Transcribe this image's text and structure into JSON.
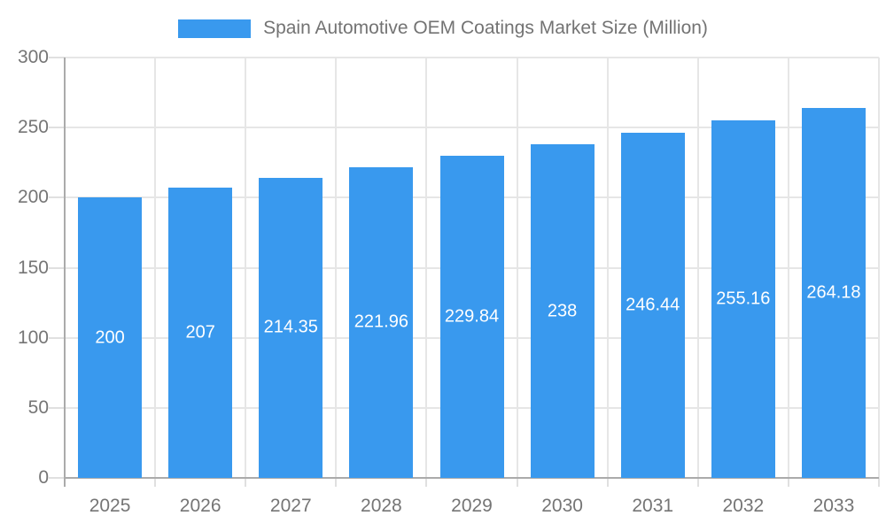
{
  "chart_data": {
    "type": "bar",
    "title": "Spain Automotive OEM Coatings Market Size (Million)",
    "categories": [
      "2025",
      "2026",
      "2027",
      "2028",
      "2029",
      "2030",
      "2031",
      "2032",
      "2033"
    ],
    "values": [
      200,
      207,
      214.35,
      221.96,
      229.84,
      238,
      246.44,
      255.16,
      264.18
    ],
    "bar_labels": [
      "200",
      "207",
      "214.35",
      "221.96",
      "229.84",
      "238",
      "246.44",
      "255.16",
      "264.18"
    ],
    "yticks": [
      0,
      50,
      100,
      150,
      200,
      250,
      300
    ],
    "ylim": [
      0,
      300
    ],
    "xlabel": "",
    "ylabel": "",
    "grid": true,
    "legend_position": "top-center",
    "colors": {
      "bar": "#3999EE",
      "bar_label_text": "#ffffff",
      "axis_text": "#757575",
      "legend_text": "#737373",
      "axis_line": "#ABABAB",
      "gridline": "#E6E6E6",
      "tick": "#E0E0E0",
      "background": "#ffffff"
    }
  }
}
